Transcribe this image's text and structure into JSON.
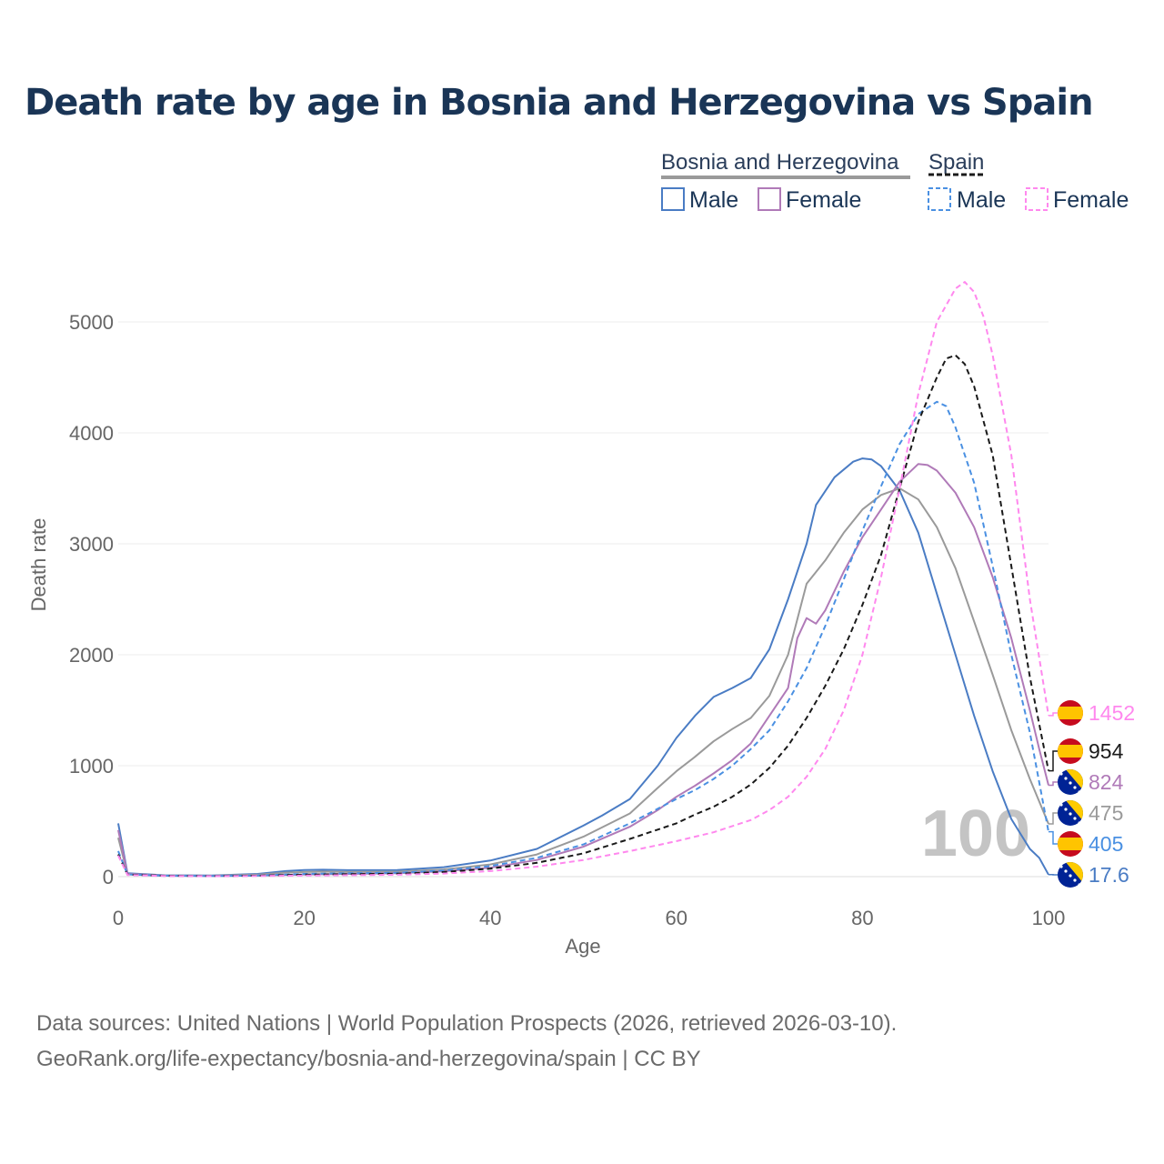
{
  "title": "Death rate by age in Bosnia and Herzegovina vs Spain",
  "legend": {
    "groups": [
      {
        "name": "Bosnia and Herzegovina",
        "male": "Male",
        "female": "Female"
      },
      {
        "name": "Spain",
        "male": "Male",
        "female": "Female"
      }
    ]
  },
  "footer": {
    "line1": "Data sources: United Nations | World Population Prospects (2026, retrieved 2026-03-10).",
    "line2": "GeoRank.org/life-expectancy/bosnia-and-herzegovina/spain | CC BY"
  },
  "chart_data": {
    "type": "line",
    "xlabel": "Age",
    "ylabel": "Death rate",
    "xlim": [
      0,
      100
    ],
    "ylim": [
      0,
      5400
    ],
    "xticks": [
      0,
      20,
      40,
      60,
      80,
      100
    ],
    "yticks": [
      0,
      1000,
      2000,
      3000,
      4000,
      5000
    ],
    "grid": true,
    "age_marker": "100",
    "colors": {
      "bih_male": "#4a7cc4",
      "bih_female": "#b07ab8",
      "bih_total": "#9a9a9a",
      "esp_male": "#4a90e2",
      "esp_female": "#ff88ee",
      "esp_total": "#1a1a1a"
    },
    "series": [
      {
        "key": "bih_male",
        "name": "Bosnia and Herzegovina Male",
        "dash": false,
        "points": [
          [
            0,
            480
          ],
          [
            1,
            30
          ],
          [
            5,
            12
          ],
          [
            10,
            10
          ],
          [
            15,
            25
          ],
          [
            18,
            50
          ],
          [
            20,
            60
          ],
          [
            22,
            62
          ],
          [
            25,
            58
          ],
          [
            30,
            60
          ],
          [
            35,
            85
          ],
          [
            40,
            145
          ],
          [
            45,
            250
          ],
          [
            50,
            460
          ],
          [
            52,
            550
          ],
          [
            55,
            700
          ],
          [
            58,
            1000
          ],
          [
            60,
            1250
          ],
          [
            62,
            1450
          ],
          [
            64,
            1620
          ],
          [
            66,
            1700
          ],
          [
            68,
            1790
          ],
          [
            70,
            2050
          ],
          [
            72,
            2500
          ],
          [
            74,
            3000
          ],
          [
            75,
            3350
          ],
          [
            77,
            3600
          ],
          [
            79,
            3740
          ],
          [
            80,
            3770
          ],
          [
            81,
            3760
          ],
          [
            82,
            3700
          ],
          [
            84,
            3480
          ],
          [
            86,
            3100
          ],
          [
            88,
            2550
          ],
          [
            90,
            2000
          ],
          [
            92,
            1450
          ],
          [
            94,
            950
          ],
          [
            96,
            520
          ],
          [
            98,
            250
          ],
          [
            99,
            170
          ],
          [
            100,
            18
          ]
        ],
        "end_value": "17.6",
        "end_flag": "bih"
      },
      {
        "key": "bih_total",
        "name": "Bosnia and Herzegovina Total",
        "dash": false,
        "points": [
          [
            0,
            350
          ],
          [
            1,
            25
          ],
          [
            5,
            10
          ],
          [
            10,
            8
          ],
          [
            15,
            18
          ],
          [
            18,
            36
          ],
          [
            20,
            42
          ],
          [
            22,
            45
          ],
          [
            25,
            42
          ],
          [
            30,
            45
          ],
          [
            35,
            65
          ],
          [
            40,
            110
          ],
          [
            45,
            200
          ],
          [
            50,
            360
          ],
          [
            55,
            570
          ],
          [
            58,
            800
          ],
          [
            60,
            950
          ],
          [
            62,
            1080
          ],
          [
            64,
            1220
          ],
          [
            66,
            1330
          ],
          [
            68,
            1430
          ],
          [
            70,
            1630
          ],
          [
            72,
            2000
          ],
          [
            74,
            2640
          ],
          [
            76,
            2850
          ],
          [
            78,
            3100
          ],
          [
            80,
            3310
          ],
          [
            82,
            3440
          ],
          [
            84,
            3500
          ],
          [
            86,
            3400
          ],
          [
            88,
            3150
          ],
          [
            90,
            2780
          ],
          [
            92,
            2300
          ],
          [
            94,
            1820
          ],
          [
            96,
            1320
          ],
          [
            98,
            880
          ],
          [
            100,
            475
          ]
        ],
        "end_value": "475",
        "end_flag": "bih"
      },
      {
        "key": "bih_female",
        "name": "Bosnia and Herzegovina Female",
        "dash": false,
        "points": [
          [
            0,
            420
          ],
          [
            1,
            25
          ],
          [
            5,
            8
          ],
          [
            10,
            6
          ],
          [
            15,
            10
          ],
          [
            20,
            20
          ],
          [
            25,
            25
          ],
          [
            30,
            30
          ],
          [
            35,
            48
          ],
          [
            40,
            80
          ],
          [
            45,
            150
          ],
          [
            50,
            270
          ],
          [
            55,
            450
          ],
          [
            58,
            600
          ],
          [
            60,
            720
          ],
          [
            62,
            820
          ],
          [
            64,
            930
          ],
          [
            66,
            1050
          ],
          [
            68,
            1200
          ],
          [
            70,
            1450
          ],
          [
            72,
            1700
          ],
          [
            73,
            2150
          ],
          [
            74,
            2330
          ],
          [
            75,
            2280
          ],
          [
            76,
            2400
          ],
          [
            78,
            2750
          ],
          [
            80,
            3060
          ],
          [
            82,
            3310
          ],
          [
            84,
            3560
          ],
          [
            86,
            3720
          ],
          [
            87,
            3710
          ],
          [
            88,
            3660
          ],
          [
            90,
            3460
          ],
          [
            92,
            3150
          ],
          [
            94,
            2700
          ],
          [
            96,
            2150
          ],
          [
            98,
            1500
          ],
          [
            99,
            1150
          ],
          [
            100,
            824
          ]
        ],
        "end_value": "824",
        "end_flag": "bih"
      },
      {
        "key": "esp_male",
        "name": "Spain Male",
        "dash": true,
        "points": [
          [
            0,
            230
          ],
          [
            1,
            20
          ],
          [
            5,
            8
          ],
          [
            10,
            6
          ],
          [
            15,
            10
          ],
          [
            20,
            25
          ],
          [
            25,
            30
          ],
          [
            30,
            35
          ],
          [
            35,
            55
          ],
          [
            40,
            95
          ],
          [
            45,
            170
          ],
          [
            50,
            290
          ],
          [
            55,
            480
          ],
          [
            60,
            700
          ],
          [
            62,
            780
          ],
          [
            64,
            880
          ],
          [
            66,
            1000
          ],
          [
            68,
            1150
          ],
          [
            70,
            1320
          ],
          [
            72,
            1580
          ],
          [
            74,
            1880
          ],
          [
            76,
            2260
          ],
          [
            78,
            2680
          ],
          [
            80,
            3120
          ],
          [
            82,
            3520
          ],
          [
            84,
            3900
          ],
          [
            86,
            4170
          ],
          [
            88,
            4280
          ],
          [
            89,
            4240
          ],
          [
            90,
            4050
          ],
          [
            92,
            3550
          ],
          [
            94,
            2800
          ],
          [
            96,
            2000
          ],
          [
            98,
            1300
          ],
          [
            100,
            405
          ]
        ],
        "end_value": "405",
        "end_flag": "esp"
      },
      {
        "key": "esp_total",
        "name": "Spain Total",
        "dash": true,
        "points": [
          [
            0,
            200
          ],
          [
            1,
            18
          ],
          [
            5,
            7
          ],
          [
            10,
            5
          ],
          [
            15,
            8
          ],
          [
            20,
            18
          ],
          [
            25,
            22
          ],
          [
            30,
            26
          ],
          [
            35,
            42
          ],
          [
            40,
            72
          ],
          [
            45,
            125
          ],
          [
            50,
            210
          ],
          [
            55,
            340
          ],
          [
            60,
            480
          ],
          [
            62,
            560
          ],
          [
            64,
            630
          ],
          [
            66,
            720
          ],
          [
            68,
            830
          ],
          [
            70,
            980
          ],
          [
            72,
            1180
          ],
          [
            74,
            1430
          ],
          [
            76,
            1720
          ],
          [
            78,
            2050
          ],
          [
            80,
            2450
          ],
          [
            82,
            2900
          ],
          [
            84,
            3500
          ],
          [
            86,
            4100
          ],
          [
            88,
            4500
          ],
          [
            89,
            4670
          ],
          [
            90,
            4700
          ],
          [
            91,
            4620
          ],
          [
            92,
            4420
          ],
          [
            94,
            3800
          ],
          [
            96,
            2800
          ],
          [
            98,
            1800
          ],
          [
            100,
            954
          ]
        ],
        "end_value": "954",
        "end_flag": "esp"
      },
      {
        "key": "esp_female",
        "name": "Spain Female",
        "dash": true,
        "points": [
          [
            0,
            190
          ],
          [
            1,
            15
          ],
          [
            5,
            6
          ],
          [
            10,
            4
          ],
          [
            15,
            6
          ],
          [
            20,
            10
          ],
          [
            25,
            13
          ],
          [
            30,
            17
          ],
          [
            35,
            28
          ],
          [
            40,
            50
          ],
          [
            45,
            90
          ],
          [
            50,
            150
          ],
          [
            55,
            230
          ],
          [
            60,
            320
          ],
          [
            64,
            400
          ],
          [
            68,
            510
          ],
          [
            70,
            600
          ],
          [
            72,
            720
          ],
          [
            74,
            900
          ],
          [
            76,
            1150
          ],
          [
            78,
            1500
          ],
          [
            80,
            2000
          ],
          [
            82,
            2700
          ],
          [
            84,
            3500
          ],
          [
            86,
            4350
          ],
          [
            88,
            5000
          ],
          [
            90,
            5300
          ],
          [
            91,
            5360
          ],
          [
            92,
            5270
          ],
          [
            93,
            5050
          ],
          [
            94,
            4700
          ],
          [
            96,
            3800
          ],
          [
            98,
            2500
          ],
          [
            100,
            1452
          ]
        ],
        "end_value": "1452",
        "end_flag": "esp"
      }
    ]
  }
}
